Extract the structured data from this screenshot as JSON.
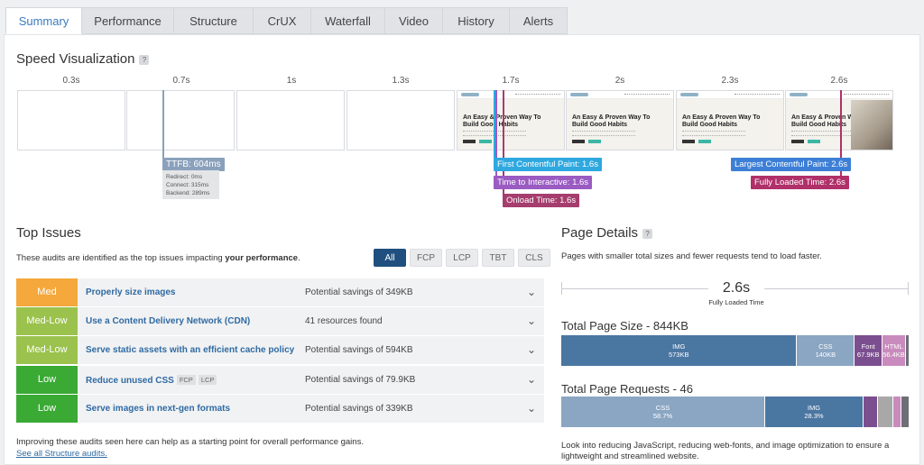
{
  "tabs": [
    {
      "label": "Summary",
      "active": true
    },
    {
      "label": "Performance"
    },
    {
      "label": "Structure"
    },
    {
      "label": "CrUX"
    },
    {
      "label": "Waterfall"
    },
    {
      "label": "Video"
    },
    {
      "label": "History"
    },
    {
      "label": "Alerts"
    }
  ],
  "speed": {
    "title": "Speed Visualization",
    "help": "?",
    "ticks": [
      "0.3s",
      "0.7s",
      "1s",
      "1.3s",
      "1.7s",
      "2s",
      "2.3s",
      "2.6s"
    ],
    "frames": [
      {
        "state": "blank"
      },
      {
        "state": "blank"
      },
      {
        "state": "blank"
      },
      {
        "state": "blank"
      },
      {
        "state": "loaded"
      },
      {
        "state": "loaded"
      },
      {
        "state": "loaded"
      },
      {
        "state": "loaded-image"
      }
    ],
    "frame_headline": "An Easy & Proven Way To Build Good Habits",
    "ttfb": {
      "label": "TTFB: 604ms",
      "redirect": "Redirect: 0ms",
      "connect": "Connect: 315ms",
      "backend": "Backend: 289ms"
    },
    "markers": {
      "fcp": "First Contentful Paint: 1.6s",
      "tti": "Time to Interactive: 1.6s",
      "onload": "Onload Time: 1.6s",
      "lcp": "Largest Contentful Paint: 2.6s",
      "fully": "Fully Loaded Time: 2.6s"
    },
    "colors": {
      "ttfb": "#8aa1bc",
      "fcp": "#2fa8e0",
      "tti": "#9a5bc2",
      "onload": "#a53d6e",
      "lcp": "#3d7fd6",
      "fully": "#b0306a"
    }
  },
  "issues": {
    "title": "Top Issues",
    "desc_prefix": "These audits are identified as the top issues impacting ",
    "desc_bold": "your performance",
    "desc_suffix": ".",
    "filters": [
      {
        "label": "All",
        "active": true
      },
      {
        "label": "FCP"
      },
      {
        "label": "LCP"
      },
      {
        "label": "TBT"
      },
      {
        "label": "CLS"
      }
    ],
    "rows": [
      {
        "severity": "Med",
        "color": "#f5a83c",
        "title": "Properly size images",
        "chips": [],
        "savings": "Potential savings of 349KB"
      },
      {
        "severity": "Med-Low",
        "color": "#9bc24d",
        "title": "Use a Content Delivery Network (CDN)",
        "chips": [],
        "savings": "41 resources found"
      },
      {
        "severity": "Med-Low",
        "color": "#9bc24d",
        "title": "Serve static assets with an efficient cache policy",
        "chips": [],
        "savings": "Potential savings of 594KB"
      },
      {
        "severity": "Low",
        "color": "#3aaa35",
        "title": "Reduce unused CSS",
        "chips": [
          "FCP",
          "LCP"
        ],
        "savings": "Potential savings of 79.9KB"
      },
      {
        "severity": "Low",
        "color": "#3aaa35",
        "title": "Serve images in next-gen formats",
        "chips": [],
        "savings": "Potential savings of 339KB"
      }
    ],
    "footer": "Improving these audits seen here can help as a starting point for overall performance gains.",
    "link": "See all Structure audits."
  },
  "details": {
    "title": "Page Details",
    "help": "?",
    "desc": "Pages with smaller total sizes and fewer requests tend to load faster.",
    "fully_value": "2.6s",
    "fully_label": "Fully Loaded Time",
    "size_title": "Total Page Size - 844KB",
    "size_segments": [
      {
        "name": "IMG",
        "value": "573KB",
        "share": 0.679,
        "color": "#4a76a2"
      },
      {
        "name": "CSS",
        "value": "140KB",
        "share": 0.166,
        "color": "#8aa6c3"
      },
      {
        "name": "Font",
        "value": "67.9KB",
        "share": 0.08,
        "color": "#7b4f8f"
      },
      {
        "name": "HTML",
        "value": "56.4KB",
        "share": 0.067,
        "color": "#c98bbd"
      },
      {
        "name": "",
        "value": "",
        "share": 0.008,
        "color": "#6e6e77"
      }
    ],
    "req_title": "Total Page Requests - 46",
    "req_segments": [
      {
        "name": "CSS",
        "value": "58.7%",
        "share": 0.587,
        "color": "#8aa6c3"
      },
      {
        "name": "IMG",
        "value": "28.3%",
        "share": 0.283,
        "color": "#4a76a2"
      },
      {
        "name": "",
        "value": "",
        "share": 0.043,
        "color": "#7b4f8f"
      },
      {
        "name": "",
        "value": "",
        "share": 0.043,
        "color": "#a8a8a8"
      },
      {
        "name": "",
        "value": "",
        "share": 0.022,
        "color": "#c98bbd"
      },
      {
        "name": "",
        "value": "",
        "share": 0.022,
        "color": "#6e6e77"
      }
    ],
    "note": "Look into reducing JavaScript, reducing web-fonts, and image optimization to ensure a lightweight and streamlined website."
  }
}
